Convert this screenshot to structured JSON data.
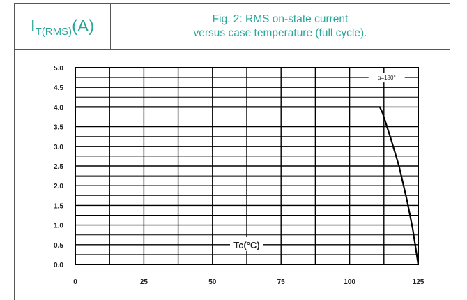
{
  "header": {
    "ylabel_main": "I",
    "ylabel_sub": "T(RMS)",
    "ylabel_unit": " (A)",
    "title_line1": "Fig. 2: RMS on-state current",
    "title_line2": "versus case temperature (full cycle)."
  },
  "chart_data": {
    "type": "line",
    "title": "Fig. 2: RMS on-state current versus case temperature (full cycle).",
    "xlabel": "Tc(°C)",
    "ylabel": "IT(RMS) (A)",
    "xlim": [
      0,
      125
    ],
    "ylim": [
      0,
      5
    ],
    "x_ticks": [
      "0",
      "25",
      "50",
      "75",
      "100",
      "125"
    ],
    "y_ticks": [
      "0.0",
      "0.5",
      "1.0",
      "1.5",
      "2.0",
      "2.5",
      "3.0",
      "3.5",
      "4.0",
      "4.5",
      "5.0"
    ],
    "grid": true,
    "annotation": "α=180°",
    "series": [
      {
        "x": [
          0,
          110,
          111,
          112,
          115,
          118,
          121,
          123,
          125
        ],
        "y": [
          4.0,
          4.0,
          4.0,
          3.85,
          3.2,
          2.5,
          1.6,
          0.9,
          0.0
        ]
      }
    ],
    "colors": {
      "line": "#000000",
      "grid": "#000000",
      "header_text": "#2aa79a"
    }
  }
}
